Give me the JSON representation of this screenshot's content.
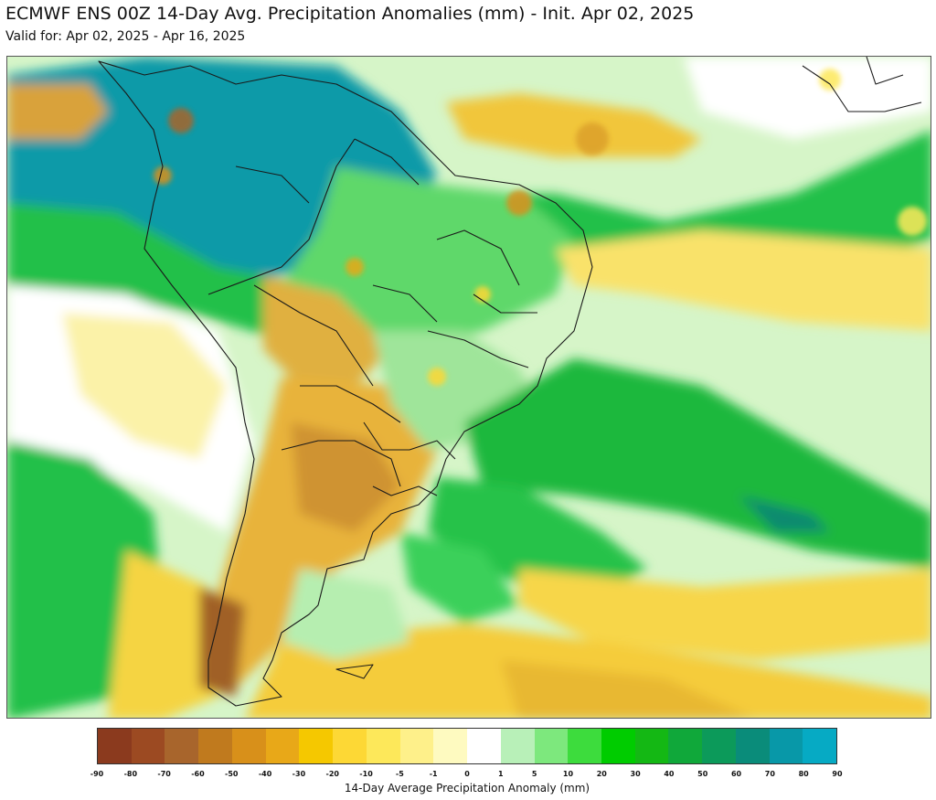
{
  "header": {
    "title": "ECMWF ENS 00Z 14-Day Avg. Precipitation Anomalies (mm) - Init. Apr 02, 2025",
    "subtitle": "Valid for: Apr 02, 2025 - Apr 16, 2025"
  },
  "legend": {
    "label": "14-Day Average Precipitation Anomaly (mm)",
    "ticks": [
      "-90",
      "-80",
      "-70",
      "-60",
      "-50",
      "-40",
      "-30",
      "-20",
      "-10",
      "-5",
      "-1",
      "0",
      "1",
      "5",
      "10",
      "20",
      "30",
      "40",
      "50",
      "60",
      "70",
      "80",
      "90"
    ],
    "colors": [
      "#8b3a1e",
      "#9c4a22",
      "#a8652c",
      "#c07a1e",
      "#d8901a",
      "#e8a818",
      "#f5c800",
      "#fdd835",
      "#fde85a",
      "#fef08a",
      "#fefac0",
      "#ffffff",
      "#ffffff",
      "#b8f0b8",
      "#7de87d",
      "#3ddc3d",
      "#00cc00",
      "#14b814",
      "#10a83a",
      "#0c9a5a",
      "#0a8c7a",
      "#0898a8",
      "#06aac4"
    ]
  },
  "colors": {
    "ocean_wet": "#16b04a",
    "dry_yellow": "#f5d442",
    "dry_orange": "#dca02a",
    "dry_brown": "#a8652c",
    "very_wet_teal": "#0e9aa8",
    "neutral": "#ffffff"
  }
}
